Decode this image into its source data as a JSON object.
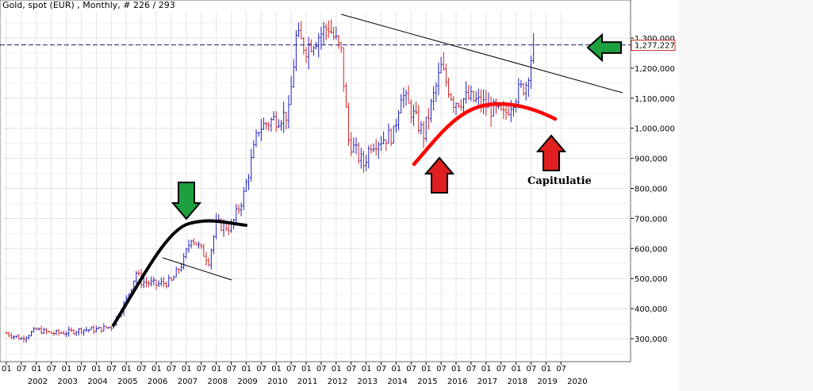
{
  "chart_data": {
    "type": "ohlc",
    "title": "Gold, spot (EUR) , Monthly, # 226 / 293",
    "ylim": [
      250000,
      1400000
    ],
    "y_ticks": [
      "300,000",
      "400,000",
      "500,000",
      "600,000",
      "700,000",
      "800,000",
      "900,000",
      "1,000,000",
      "1,100,000",
      "1,200,000",
      "1,300,000"
    ],
    "y_tick_values": [
      300000,
      400000,
      500000,
      600000,
      700000,
      800000,
      900000,
      1000000,
      1100000,
      1200000,
      1300000
    ],
    "x_years": [
      "2002",
      "2003",
      "2004",
      "2005",
      "2006",
      "2007",
      "2008",
      "2009",
      "2010",
      "2011",
      "2012",
      "2013",
      "2014",
      "2015",
      "2016",
      "2017",
      "2018",
      "2019",
      "2020"
    ],
    "x_month_labels": [
      "01",
      "07"
    ],
    "last_price": "1,277,227",
    "last_price_value": 1277227,
    "series_monthly_close_keypoints": [
      {
        "date": "2002-01",
        "value": 318000
      },
      {
        "date": "2002-07",
        "value": 300000
      },
      {
        "date": "2003-01",
        "value": 330000
      },
      {
        "date": "2003-07",
        "value": 318000
      },
      {
        "date": "2004-01",
        "value": 320000
      },
      {
        "date": "2004-07",
        "value": 330000
      },
      {
        "date": "2005-01",
        "value": 330000
      },
      {
        "date": "2005-07",
        "value": 340000
      },
      {
        "date": "2006-01",
        "value": 430000
      },
      {
        "date": "2006-05",
        "value": 520000
      },
      {
        "date": "2006-07",
        "value": 490000
      },
      {
        "date": "2007-01",
        "value": 480000
      },
      {
        "date": "2007-07",
        "value": 490000
      },
      {
        "date": "2007-12",
        "value": 560000
      },
      {
        "date": "2008-03",
        "value": 640000
      },
      {
        "date": "2008-10",
        "value": 560000
      },
      {
        "date": "2009-01",
        "value": 680000
      },
      {
        "date": "2009-07",
        "value": 670000
      },
      {
        "date": "2009-12",
        "value": 780000
      },
      {
        "date": "2010-06",
        "value": 1000000
      },
      {
        "date": "2010-12",
        "value": 1030000
      },
      {
        "date": "2011-06",
        "value": 1050000
      },
      {
        "date": "2011-09",
        "value": 1300000
      },
      {
        "date": "2012-01",
        "value": 1270000
      },
      {
        "date": "2012-10",
        "value": 1340000
      },
      {
        "date": "2013-03",
        "value": 1250000
      },
      {
        "date": "2013-06",
        "value": 960000
      },
      {
        "date": "2013-12",
        "value": 880000
      },
      {
        "date": "2014-03",
        "value": 950000
      },
      {
        "date": "2014-12",
        "value": 980000
      },
      {
        "date": "2015-03",
        "value": 1120000
      },
      {
        "date": "2015-12",
        "value": 980000
      },
      {
        "date": "2016-07",
        "value": 1200000
      },
      {
        "date": "2016-12",
        "value": 1090000
      },
      {
        "date": "2017-06",
        "value": 1100000
      },
      {
        "date": "2017-12",
        "value": 1080000
      },
      {
        "date": "2018-08",
        "value": 1040000
      },
      {
        "date": "2018-12",
        "value": 1100000
      },
      {
        "date": "2019-05",
        "value": 1150000
      },
      {
        "date": "2019-08",
        "value": 1277227
      }
    ],
    "annotations": {
      "capitulation_label": "Capitulatie",
      "colors": {
        "up_bar": "#2020c0",
        "down_bar": "#d02020",
        "red_curve": "#ff0000",
        "black_curve": "#000000",
        "green_arrow": "#1fa040",
        "red_arrow": "#e02020",
        "price_line": "#1a1a80",
        "price_box_border": "#d02020",
        "grid": "#e3e3e3"
      }
    }
  }
}
